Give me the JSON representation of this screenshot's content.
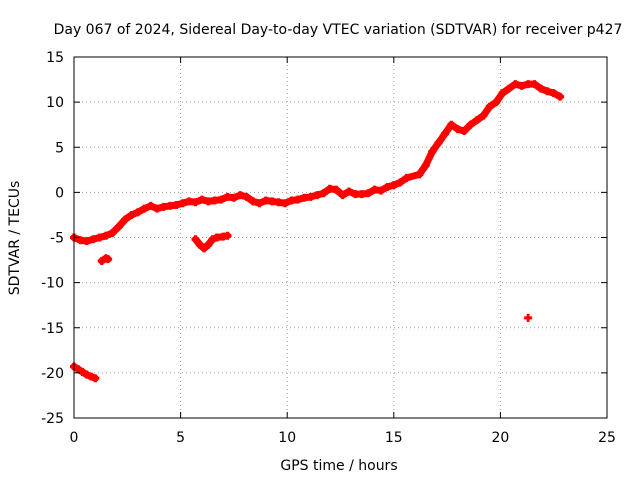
{
  "chart_data": {
    "type": "scatter",
    "title": "Day 067 of 2024, Sidereal Day-to-day VTEC variation (SDTVAR) for receiver p427",
    "xlabel": "GPS time / hours",
    "ylabel": "SDTVAR / TECUs",
    "xlim": [
      0,
      25
    ],
    "ylim": [
      -25,
      15
    ],
    "xticks": [
      0,
      5,
      10,
      15,
      20,
      25
    ],
    "yticks": [
      -25,
      -20,
      -15,
      -10,
      -5,
      0,
      5,
      10,
      15
    ],
    "grid": true,
    "marker_color": "#ff0000",
    "series": [
      {
        "name": "main trace",
        "x": [
          0.0,
          0.3,
          0.6,
          0.9,
          1.2,
          1.5,
          1.8,
          2.1,
          2.4,
          2.7,
          3.0,
          3.3,
          3.6,
          3.9,
          4.2,
          4.5,
          4.8,
          5.1,
          5.4,
          5.7,
          6.0,
          6.3,
          6.6,
          6.9,
          7.2,
          7.5,
          7.8,
          8.1,
          8.4,
          8.7,
          9.0,
          9.3,
          9.6,
          9.9,
          10.2,
          10.5,
          10.8,
          11.1,
          11.4,
          11.7,
          12.0,
          12.3,
          12.6,
          12.9,
          13.2,
          13.5,
          13.8,
          14.1,
          14.4,
          14.7,
          15.0,
          15.3,
          15.6,
          16.2,
          16.5,
          16.8,
          17.1,
          17.4,
          17.7,
          18.0,
          18.3,
          18.6,
          18.9,
          19.2,
          19.5,
          19.8,
          20.1,
          20.4,
          20.7,
          21.0,
          21.3,
          21.6,
          21.9,
          22.2,
          22.5,
          22.8
        ],
        "y": [
          -5.0,
          -5.3,
          -5.4,
          -5.2,
          -5.0,
          -4.8,
          -4.5,
          -3.8,
          -3.0,
          -2.5,
          -2.2,
          -1.8,
          -1.5,
          -1.8,
          -1.6,
          -1.5,
          -1.4,
          -1.2,
          -1.0,
          -1.1,
          -0.8,
          -1.0,
          -0.9,
          -0.8,
          -0.5,
          -0.6,
          -0.3,
          -0.5,
          -1.0,
          -1.2,
          -0.9,
          -1.0,
          -1.1,
          -1.2,
          -0.9,
          -0.8,
          -0.6,
          -0.5,
          -0.3,
          -0.1,
          0.4,
          0.3,
          -0.3,
          0.1,
          -0.2,
          -0.2,
          -0.1,
          0.3,
          0.2,
          0.6,
          0.8,
          1.1,
          1.6,
          2.0,
          3.0,
          4.5,
          5.5,
          6.5,
          7.5,
          7.0,
          6.8,
          7.5,
          8.0,
          8.5,
          9.5,
          10.0,
          11.0,
          11.5,
          12.0,
          11.8,
          12.0,
          12.0,
          11.5,
          11.2,
          11.0,
          10.6
        ]
      },
      {
        "name": "segment near hour 6",
        "x": [
          5.7,
          5.9,
          6.1,
          6.3,
          6.5,
          6.7,
          7.0,
          7.2
        ],
        "y": [
          -5.2,
          -5.8,
          -6.2,
          -5.8,
          -5.2,
          -5.0,
          -4.9,
          -4.8
        ]
      },
      {
        "name": "points near hour 1.5",
        "x": [
          1.3,
          1.5,
          1.6
        ],
        "y": [
          -7.6,
          -7.3,
          -7.4
        ]
      },
      {
        "name": "outlier",
        "x": [
          21.3
        ],
        "y": [
          -13.9
        ]
      },
      {
        "name": "early low segment",
        "x": [
          0.0,
          0.2,
          0.4,
          0.6,
          0.8,
          1.0
        ],
        "y": [
          -19.3,
          -19.6,
          -19.9,
          -20.2,
          -20.4,
          -20.6
        ]
      }
    ]
  }
}
